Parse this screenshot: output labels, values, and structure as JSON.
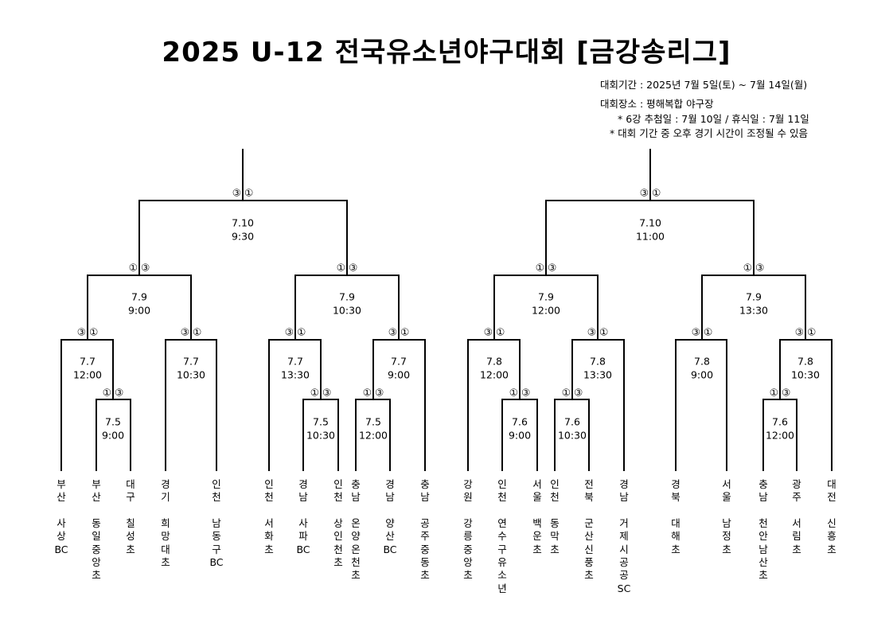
{
  "title": "2025 U-12 전국유소년야구대회 [금강송리그]",
  "info": {
    "period": "대회기간 : 2025년 7월 5일(토) ~ 7월 14일(월)",
    "venue": "대회장소 : 평해복합 야구장",
    "note1": "* 6강 추첨일 : 7월 10일 / 휴식일 : 7월 11일",
    "note2": "* 대회 기간 중 오후 경기 시간이 조정될 수 있음"
  },
  "seed_pair_left": "③ ①",
  "seed_pair_right": "① ③",
  "matches": [
    {
      "date": "7.10",
      "time": "9:30",
      "seeds": "③ ①"
    },
    {
      "date": "7.10",
      "time": "11:00",
      "seeds": "③ ①"
    },
    {
      "date": "7.9",
      "time": "9:00",
      "seeds": "① ③"
    },
    {
      "date": "7.9",
      "time": "10:30",
      "seeds": "① ③"
    },
    {
      "date": "7.9",
      "time": "12:00",
      "seeds": "① ③"
    },
    {
      "date": "7.9",
      "time": "13:30",
      "seeds": "① ③"
    },
    {
      "date": "7.7",
      "time": "12:00",
      "seeds": "③ ①"
    },
    {
      "date": "7.7",
      "time": "10:30",
      "seeds": "③ ①"
    },
    {
      "date": "7.7",
      "time": "13:30",
      "seeds": "③ ①"
    },
    {
      "date": "7.7",
      "time": "9:00",
      "seeds": "③ ①"
    },
    {
      "date": "7.8",
      "time": "12:00",
      "seeds": "③ ①"
    },
    {
      "date": "7.8",
      "time": "13:30",
      "seeds": "③ ①"
    },
    {
      "date": "7.8",
      "time": "9:00",
      "seeds": "③ ①"
    },
    {
      "date": "7.8",
      "time": "10:30",
      "seeds": "③ ①"
    },
    {
      "date": "7.5",
      "time": "9:00",
      "seeds": "① ③"
    },
    {
      "date": "7.5",
      "time": "10:30",
      "seeds": "① ③"
    },
    {
      "date": "7.5",
      "time": "12:00",
      "seeds": "① ③"
    },
    {
      "date": "7.6",
      "time": "9:00",
      "seeds": "① ③"
    },
    {
      "date": "7.6",
      "time": "10:30",
      "seeds": "① ③"
    },
    {
      "date": "7.6",
      "time": "12:00",
      "seeds": "① ③"
    }
  ],
  "teams": [
    {
      "region": "부산",
      "name": "사상BC"
    },
    {
      "region": "부산",
      "name": "동일중앙초"
    },
    {
      "region": "대구",
      "name": "칠성초"
    },
    {
      "region": "경기",
      "name": "희망대초"
    },
    {
      "region": "인천",
      "name": "남동구BC"
    },
    {
      "region": "인천",
      "name": "서화초"
    },
    {
      "region": "경남",
      "name": "사파BC"
    },
    {
      "region": "인천",
      "name": "상인천초"
    },
    {
      "region": "충남",
      "name": "온양온천초"
    },
    {
      "region": "경남",
      "name": "양산BC"
    },
    {
      "region": "충남",
      "name": "공주중동초"
    },
    {
      "region": "강원",
      "name": "강릉중앙초"
    },
    {
      "region": "인천",
      "name": "연수구유소년"
    },
    {
      "region": "서울",
      "name": "백운초"
    },
    {
      "region": "인천",
      "name": "동막초"
    },
    {
      "region": "전북",
      "name": "군산신풍초"
    },
    {
      "region": "경남",
      "name": "거제시공공SC"
    },
    {
      "region": "경북",
      "name": "대해초"
    },
    {
      "region": "서울",
      "name": "남정초"
    },
    {
      "region": "충남",
      "name": "천안남산초"
    },
    {
      "region": "광주",
      "name": "서림초"
    },
    {
      "region": "대전",
      "name": "신흥초"
    }
  ]
}
